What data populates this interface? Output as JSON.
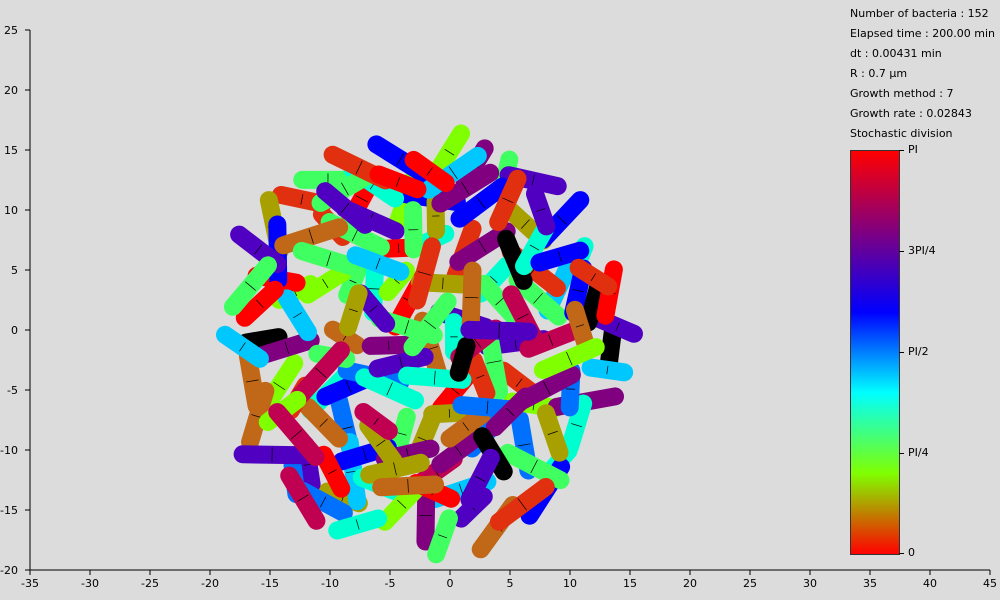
{
  "chart_data": {
    "type": "scatter",
    "xlim": [
      -35,
      45
    ],
    "ylim": [
      -20,
      25
    ],
    "x_ticks": [
      -35,
      -30,
      -25,
      -20,
      -15,
      -10,
      -5,
      0,
      5,
      10,
      15,
      20,
      25,
      30,
      35,
      40,
      45
    ],
    "y_ticks": [
      25,
      20,
      15,
      10,
      5,
      0,
      -5,
      -10,
      -15,
      -20
    ],
    "grid": false,
    "bacteria_count": 152
  },
  "info": {
    "number_of_bacteria": "Number of bacteria : 152",
    "elapsed_time": "Elapsed time : 200.00 min",
    "dt": "dt : 0.00431 min",
    "radius": "R : 0.7 µm",
    "growth_method": "Growth method : 7",
    "growth_rate": "Growth rate : 0.02843",
    "division": "Stochastic division"
  },
  "colorbar": {
    "labels": {
      "pi": "PI",
      "three_pi_4": "3PI/4",
      "pi_2": "PI/2",
      "pi_4": "PI/4",
      "zero": "0"
    },
    "colors": [
      "#ff0000",
      "#80ff00",
      "#00ffff",
      "#0000ff",
      "#800080",
      "#ff0000"
    ]
  }
}
